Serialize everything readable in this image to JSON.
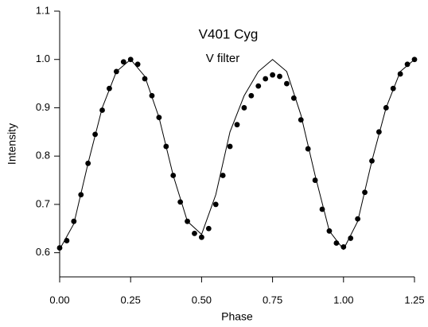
{
  "chart_data": {
    "type": "scatter",
    "title": "V401 Cyg",
    "subtitle": "V filter",
    "x_label": "Phase",
    "y_label": "Intensity",
    "xlim": [
      0,
      1.25
    ],
    "ylim": [
      0.55,
      1.1
    ],
    "xticks": [
      {
        "value": 0,
        "label": "0.00"
      },
      0.25,
      {
        "value": 0.5,
        "label": "0.50"
      },
      0.75,
      {
        "value": 1,
        "label": "1.00"
      },
      1.25
    ],
    "yticks": [
      {
        "value": 0.6,
        "label": "0.6"
      },
      {
        "value": 0.7,
        "label": "0.7"
      },
      {
        "value": 0.8,
        "label": "0.8"
      },
      {
        "value": 0.9,
        "label": "0.9"
      },
      {
        "value": 1,
        "label": "1.0"
      },
      {
        "value": 1.1,
        "label": "1.1"
      }
    ],
    "series": [
      {
        "type": "scatter",
        "color": "#000000",
        "x": [
          0,
          0.025,
          0.05,
          0.075,
          0.1,
          0.125,
          0.15,
          0.175,
          0.2,
          0.225,
          0.25,
          0.275,
          0.3,
          0.325,
          0.35,
          0.375,
          0.4,
          0.425,
          0.45,
          0.475,
          0.5,
          0.525,
          0.55,
          0.575,
          0.6,
          0.625,
          0.65,
          0.675,
          0.7,
          0.725,
          0.75,
          0.775,
          0.8,
          0.825,
          0.85,
          0.875,
          0.9,
          0.925,
          0.95,
          0.975,
          1.0,
          1.025,
          1.05,
          1.075,
          1.1,
          1.125,
          1.15,
          1.175,
          1.2,
          1.225,
          1.25
        ],
        "values": [
          0.61,
          0.625,
          0.665,
          0.72,
          0.785,
          0.845,
          0.895,
          0.94,
          0.975,
          0.995,
          1.0,
          0.99,
          0.96,
          0.925,
          0.88,
          0.82,
          0.76,
          0.705,
          0.665,
          0.64,
          0.632,
          0.65,
          0.7,
          0.76,
          0.82,
          0.865,
          0.9,
          0.925,
          0.945,
          0.96,
          0.968,
          0.965,
          0.95,
          0.92,
          0.875,
          0.815,
          0.75,
          0.69,
          0.645,
          0.62,
          0.612,
          0.63,
          0.67,
          0.725,
          0.79,
          0.85,
          0.9,
          0.94,
          0.97,
          0.99,
          1.0
        ]
      },
      {
        "type": "line",
        "color": "#000000",
        "x": [
          0,
          0.05,
          0.1,
          0.15,
          0.2,
          0.25,
          0.3,
          0.35,
          0.4,
          0.45,
          0.5,
          0.55,
          0.6,
          0.65,
          0.7,
          0.75,
          0.8,
          0.85,
          0.9,
          0.95,
          1.0,
          1.05,
          1.1,
          1.15,
          1.2,
          1.25
        ],
        "values": [
          0.607,
          0.66,
          0.785,
          0.9,
          0.975,
          1.0,
          0.965,
          0.88,
          0.76,
          0.665,
          0.638,
          0.72,
          0.85,
          0.925,
          0.975,
          1.0,
          0.975,
          0.885,
          0.76,
          0.645,
          0.607,
          0.665,
          0.79,
          0.9,
          0.975,
          1.0
        ]
      }
    ]
  }
}
